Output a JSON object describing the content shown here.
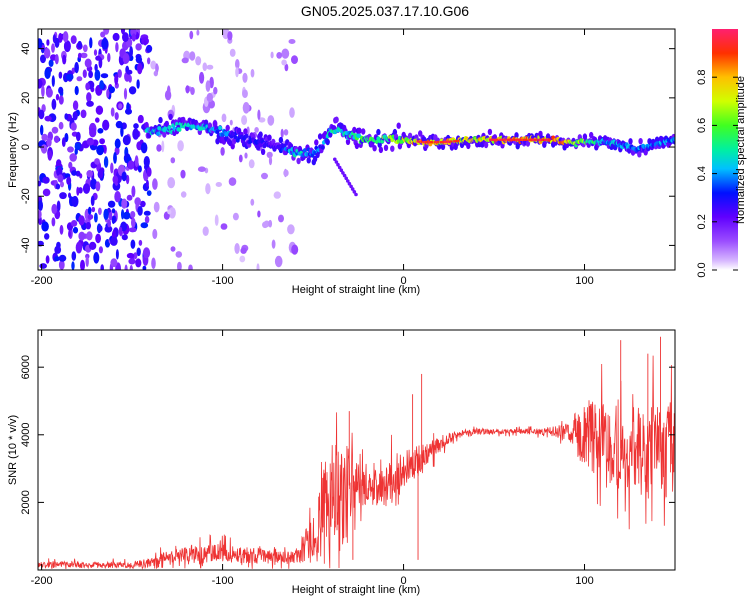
{
  "chart_data": [
    {
      "type": "heatmap",
      "title": "GN05.2025.037.17.10.G06",
      "xlabel": "Height of straight line (km)",
      "ylabel": "Frequency (Hz)",
      "xlim": [
        -202,
        150
      ],
      "ylim": [
        -50,
        48
      ],
      "xticks": [
        -200,
        -100,
        0,
        100
      ],
      "yticks": [
        -40,
        -20,
        0,
        20,
        40
      ],
      "colorbar": {
        "label": "Normalized spectral amplitude",
        "range": [
          0,
          1
        ],
        "ticks": [
          "0.0",
          "0.2",
          "0.4",
          "0.6",
          "0.8"
        ],
        "tick_values": [
          0,
          0.2,
          0.4,
          0.6,
          0.8
        ]
      },
      "ridge": {
        "x": [
          -140,
          -130,
          -120,
          -110,
          -100,
          -90,
          -80,
          -70,
          -60,
          -50,
          -45,
          -40,
          -35,
          -30,
          -25,
          -20,
          -15,
          -10,
          -5,
          0,
          10,
          20,
          40,
          60,
          80,
          90,
          100,
          110,
          120,
          130,
          140,
          150
        ],
        "freq": [
          7,
          7,
          9,
          8,
          6,
          4,
          2,
          0,
          -2,
          -3,
          0,
          7,
          7,
          5,
          4,
          3,
          3,
          3,
          3,
          3,
          2,
          2,
          3,
          3,
          3,
          2,
          2,
          2,
          1,
          -1,
          1,
          3
        ],
        "amplitude": [
          0.45,
          0.5,
          0.5,
          0.45,
          0.4,
          0.3,
          0.3,
          0.25,
          0.5,
          0.4,
          0.35,
          0.55,
          0.5,
          0.5,
          0.55,
          0.6,
          0.6,
          0.6,
          0.65,
          0.7,
          0.85,
          0.85,
          0.75,
          0.9,
          0.85,
          0.8,
          0.6,
          0.45,
          0.45,
          0.4,
          0.4,
          0.4
        ]
      },
      "background_noise_x_range": [
        -202,
        -60
      ],
      "grid": false
    },
    {
      "type": "line",
      "xlabel": "Height of straight line (km)",
      "ylabel": "SNR (10 * v/v)",
      "xlim": [
        -202,
        150
      ],
      "ylim": [
        0,
        7100
      ],
      "xticks": [
        -200,
        -100,
        0,
        100
      ],
      "yticks": [
        2000,
        4000,
        6000
      ],
      "series": [
        {
          "color": "#ee3333",
          "x": [
            -202,
            -150,
            -140,
            -120,
            -100,
            -80,
            -60,
            -50,
            -45,
            -40,
            -35,
            -30,
            -25,
            -20,
            -15,
            -10,
            -5,
            0,
            5,
            10,
            15,
            20,
            25,
            30,
            40,
            50,
            60,
            70,
            80,
            90,
            100,
            110,
            120,
            130,
            140,
            150
          ],
          "y": [
            150,
            150,
            200,
            450,
            500,
            420,
            380,
            900,
            1500,
            1900,
            2300,
            2500,
            2500,
            2400,
            2400,
            2500,
            2700,
            3000,
            3100,
            3300,
            3500,
            3700,
            3900,
            4000,
            4100,
            4100,
            4100,
            4100,
            4100,
            4100,
            4000,
            3800,
            3600,
            3500,
            3500,
            3500
          ],
          "noise_amplitude": [
            120,
            120,
            200,
            400,
            350,
            300,
            250,
            900,
            1500,
            1800,
            2000,
            1600,
            800,
            600,
            700,
            800,
            900,
            700,
            600,
            600,
            400,
            300,
            200,
            150,
            120,
            100,
            100,
            100,
            150,
            300,
            1200,
            1500,
            1600,
            1700,
            1800,
            1800
          ]
        }
      ],
      "grid": false
    }
  ]
}
